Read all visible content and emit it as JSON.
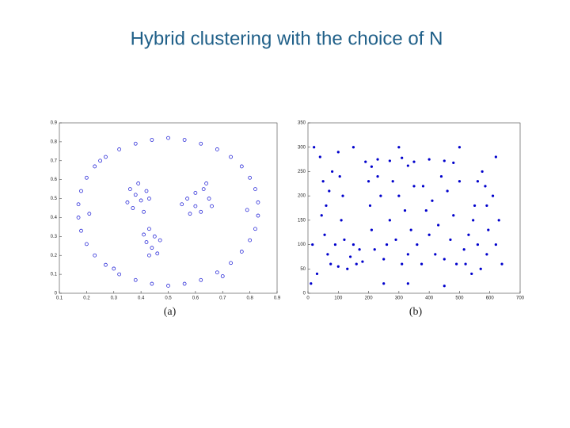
{
  "title": "Hybrid clustering with the choice of N",
  "chart_data": [
    {
      "type": "scatter",
      "caption": "(a)",
      "color": "#2b2bd8",
      "xlim": [
        0.1,
        0.9
      ],
      "ylim": [
        0,
        0.9
      ],
      "xticks": [
        0.1,
        0.2,
        0.3,
        0.4,
        0.5,
        0.6,
        0.7,
        0.8,
        0.9
      ],
      "yticks": [
        0,
        0.1,
        0.2,
        0.3,
        0.4,
        0.5,
        0.6,
        0.7,
        0.8,
        0.9
      ],
      "x": [
        0.5,
        0.56,
        0.62,
        0.68,
        0.73,
        0.77,
        0.8,
        0.82,
        0.83,
        0.83,
        0.82,
        0.8,
        0.77,
        0.73,
        0.68,
        0.62,
        0.56,
        0.5,
        0.44,
        0.38,
        0.32,
        0.27,
        0.23,
        0.2,
        0.18,
        0.17,
        0.17,
        0.18,
        0.2,
        0.23,
        0.27,
        0.32,
        0.38,
        0.44,
        0.25,
        0.79,
        0.21,
        0.3,
        0.7,
        0.36,
        0.38,
        0.4,
        0.39,
        0.42,
        0.35,
        0.43,
        0.37,
        0.41,
        0.57,
        0.6,
        0.63,
        0.65,
        0.6,
        0.58,
        0.62,
        0.66,
        0.55,
        0.64,
        0.43,
        0.45,
        0.42,
        0.44,
        0.47,
        0.41,
        0.46,
        0.43
      ],
      "y": [
        0.82,
        0.81,
        0.79,
        0.76,
        0.72,
        0.67,
        0.61,
        0.55,
        0.48,
        0.41,
        0.34,
        0.28,
        0.22,
        0.16,
        0.11,
        0.07,
        0.05,
        0.04,
        0.05,
        0.07,
        0.1,
        0.15,
        0.2,
        0.26,
        0.33,
        0.4,
        0.47,
        0.54,
        0.61,
        0.67,
        0.72,
        0.76,
        0.79,
        0.81,
        0.7,
        0.44,
        0.42,
        0.13,
        0.09,
        0.55,
        0.52,
        0.49,
        0.58,
        0.54,
        0.48,
        0.5,
        0.45,
        0.43,
        0.5,
        0.53,
        0.55,
        0.5,
        0.46,
        0.42,
        0.43,
        0.46,
        0.47,
        0.58,
        0.34,
        0.3,
        0.27,
        0.24,
        0.28,
        0.31,
        0.21,
        0.2
      ]
    },
    {
      "type": "scatter",
      "caption": "(b)",
      "color": "#0000cc",
      "xlim": [
        0,
        700
      ],
      "ylim": [
        0,
        350
      ],
      "xticks": [
        0,
        100,
        200,
        300,
        400,
        500,
        600,
        700
      ],
      "yticks": [
        0,
        50,
        100,
        150,
        200,
        250,
        300,
        350
      ],
      "x": [
        50,
        60,
        55,
        65,
        75,
        100,
        130,
        160,
        170,
        150,
        120,
        110,
        115,
        105,
        80,
        70,
        90,
        140,
        180,
        45,
        40,
        30,
        190,
        230,
        270,
        310,
        350,
        400,
        450,
        480,
        210,
        330,
        200,
        205,
        210,
        220,
        250,
        240,
        270,
        290,
        300,
        320,
        340,
        330,
        310,
        360,
        350,
        230,
        280,
        260,
        380,
        390,
        400,
        420,
        450,
        470,
        480,
        460,
        440,
        410,
        430,
        490,
        375,
        500,
        520,
        540,
        570,
        590,
        595,
        590,
        585,
        575,
        560,
        550,
        530,
        515,
        560,
        545,
        20,
        100,
        300,
        500,
        620,
        630,
        640,
        10,
        330,
        450,
        620,
        150,
        15,
        610,
        250
      ],
      "y": [
        230,
        180,
        120,
        80,
        60,
        55,
        50,
        60,
        90,
        100,
        110,
        150,
        200,
        240,
        250,
        210,
        100,
        75,
        65,
        160,
        280,
        40,
        270,
        275,
        272,
        278,
        270,
        275,
        272,
        268,
        260,
        262,
        230,
        180,
        130,
        90,
        70,
        200,
        150,
        110,
        200,
        170,
        130,
        80,
        60,
        100,
        220,
        240,
        230,
        100,
        220,
        170,
        120,
        80,
        70,
        110,
        160,
        210,
        240,
        190,
        140,
        60,
        60,
        230,
        60,
        40,
        50,
        80,
        130,
        180,
        220,
        250,
        230,
        180,
        120,
        90,
        100,
        150,
        300,
        290,
        300,
        300,
        280,
        150,
        60,
        20,
        20,
        15,
        100,
        300,
        100,
        200,
        20
      ]
    }
  ]
}
